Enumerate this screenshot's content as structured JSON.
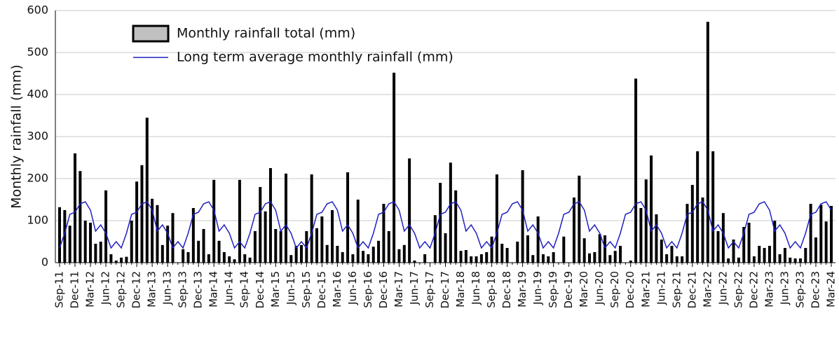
{
  "chart_data": {
    "type": "bar",
    "ylabel": "Monthly rainfall (mm)",
    "categories": [
      "Sep-11",
      null,
      null,
      "Dec-11",
      null,
      null,
      "Mar-12",
      null,
      null,
      "Jun-12",
      null,
      null,
      "Sep-12",
      null,
      null,
      "Dec-12",
      null,
      null,
      "Mar-13",
      null,
      null,
      "Jun-13",
      null,
      null,
      "Sep-13",
      null,
      null,
      "Dec-13",
      null,
      null,
      "Mar-14",
      null,
      null,
      "Jun-14",
      null,
      null,
      "Sep-14",
      null,
      null,
      "Dec-14",
      null,
      null,
      "Mar-15",
      null,
      null,
      "Jun-15",
      null,
      null,
      "Sep-15",
      null,
      null,
      "Dec-15",
      null,
      null,
      "Mar-16",
      null,
      null,
      "Jun-16",
      null,
      null,
      "Sep-16",
      null,
      null,
      "Dec-16",
      null,
      null,
      "Mar-17",
      null,
      null,
      "Jun-17",
      null,
      null,
      "Sep-17",
      null,
      null,
      "Dec-17",
      null,
      null,
      "Mar-18",
      null,
      null,
      "Jun-18",
      null,
      null,
      "Sep-18",
      null,
      null,
      "Dec-18",
      null,
      null,
      "Mar-19",
      null,
      null,
      "Jun-19",
      null,
      null,
      "Sep-19",
      null,
      null,
      "Dec-19",
      null,
      null,
      "Mar-20",
      null,
      null,
      "Jun-20",
      null,
      null,
      "Sep-20",
      null,
      null,
      "Dec-20",
      null,
      null,
      "Mar-21",
      null,
      null,
      "Jun-21",
      null,
      null,
      "Sep-21",
      null,
      null,
      "Dec-21",
      null,
      null,
      "Mar-22",
      null,
      null,
      "Jun-22",
      null,
      null,
      "Sep-22",
      null,
      null,
      "Dec-22",
      null,
      null,
      "Mar-23",
      null,
      null,
      "Jun-23",
      null,
      null,
      "Sep-23",
      null,
      null,
      "Dec-23",
      null,
      null,
      "Mar-24"
    ],
    "series": [
      {
        "name": "Monthly rainfall total (mm)",
        "type": "bar",
        "color": "#000000",
        "values": [
          132,
          125,
          88,
          260,
          218,
          100,
          95,
          45,
          50,
          172,
          20,
          5,
          12,
          14,
          100,
          193,
          232,
          345,
          152,
          137,
          42,
          88,
          118,
          0,
          32,
          25,
          130,
          52,
          80,
          20,
          197,
          52,
          25,
          15,
          8,
          197,
          20,
          12,
          75,
          180,
          122,
          225,
          80,
          75,
          212,
          18,
          40,
          42,
          75,
          210,
          82,
          110,
          42,
          125,
          40,
          25,
          215,
          20,
          150,
          28,
          20,
          38,
          52,
          140,
          75,
          452,
          32,
          42,
          248,
          5,
          0,
          20,
          0,
          113,
          190,
          70,
          238,
          172,
          28,
          30,
          15,
          15,
          20,
          25,
          62,
          210,
          45,
          35,
          0,
          50,
          220,
          65,
          18,
          110,
          20,
          15,
          25,
          0,
          62,
          0,
          155,
          207,
          58,
          22,
          25,
          68,
          65,
          18,
          28,
          40,
          0,
          5,
          438,
          130,
          198,
          255,
          115,
          55,
          20,
          40,
          15,
          15,
          140,
          185,
          265,
          155,
          573,
          265,
          75,
          118,
          10,
          55,
          12,
          85,
          95,
          15,
          40,
          35,
          40,
          100,
          20,
          35,
          12,
          10,
          10,
          35,
          140,
          60,
          138,
          98,
          135
        ]
      },
      {
        "name": "Long term average monthly rainfall (mm)",
        "type": "line",
        "color": "#2020c0",
        "values": [
          35,
          70,
          115,
          120,
          140,
          145,
          125,
          75,
          90,
          70,
          35,
          50,
          35,
          70,
          115,
          120,
          140,
          145,
          125,
          75,
          90,
          70,
          35,
          50,
          35,
          70,
          115,
          120,
          140,
          145,
          125,
          75,
          90,
          70,
          35,
          50,
          35,
          70,
          115,
          120,
          140,
          145,
          125,
          75,
          90,
          70,
          35,
          50,
          35,
          70,
          115,
          120,
          140,
          145,
          125,
          75,
          90,
          70,
          35,
          50,
          35,
          70,
          115,
          120,
          140,
          145,
          125,
          75,
          90,
          70,
          35,
          50,
          35,
          70,
          115,
          120,
          140,
          145,
          125,
          75,
          90,
          70,
          35,
          50,
          35,
          70,
          115,
          120,
          140,
          145,
          125,
          75,
          90,
          70,
          35,
          50,
          35,
          70,
          115,
          120,
          140,
          145,
          125,
          75,
          90,
          70,
          35,
          50,
          35,
          70,
          115,
          120,
          140,
          145,
          125,
          75,
          90,
          70,
          35,
          50,
          35,
          70,
          115,
          120,
          140,
          145,
          125,
          75,
          90,
          70,
          35,
          50,
          35,
          70,
          115,
          120,
          140,
          145,
          125,
          75,
          90,
          70,
          35,
          50,
          35,
          70,
          115,
          120,
          140,
          145,
          125
        ]
      }
    ],
    "ylim": [
      0,
      600
    ],
    "yticks": [
      0,
      100,
      200,
      300,
      400,
      500,
      600
    ],
    "grid": true,
    "legend": "top-left"
  }
}
